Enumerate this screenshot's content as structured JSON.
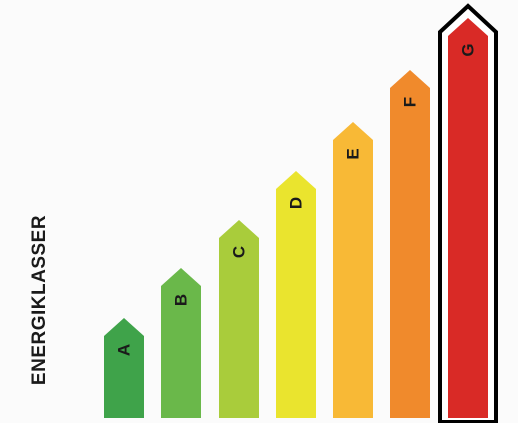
{
  "title": "ENERGIKLASSER",
  "classes": [
    {
      "label": "A",
      "color": "#3fa34a"
    },
    {
      "label": "B",
      "color": "#6ab84a"
    },
    {
      "label": "C",
      "color": "#a9cc3b"
    },
    {
      "label": "D",
      "color": "#eae42e"
    },
    {
      "label": "E",
      "color": "#f8b936"
    },
    {
      "label": "F",
      "color": "#f08a2c"
    },
    {
      "label": "G",
      "color": "#d92a26",
      "highlighted": true
    }
  ]
}
